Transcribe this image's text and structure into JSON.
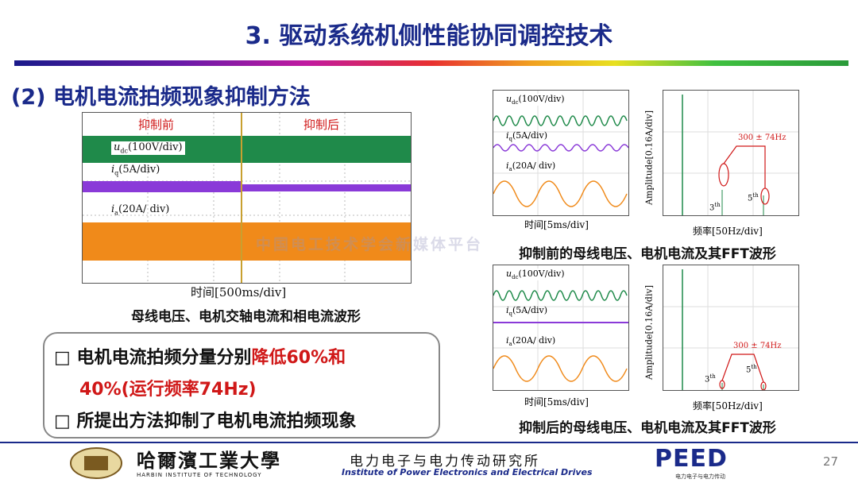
{
  "header": {
    "title": "3. 驱动系统机侧性能协同调控技术"
  },
  "section": {
    "subtitle": "(2) 电机电流拍频现象抑制方法"
  },
  "left_scope": {
    "label_before": "抑制前",
    "label_after": "抑制后",
    "udc_label": "u",
    "udc_sub": "dc",
    "udc_scale": "(100V/div)",
    "iq_label": "i",
    "iq_sub": "q",
    "iq_scale": "(5A/div)",
    "ia_label": "i",
    "ia_sub": "a",
    "ia_scale": "(20A/ div)",
    "time_axis": "时间[500ms/div]",
    "caption": "母线电压、电机交轴电流和相电流波形"
  },
  "right_top": {
    "udc_label": "u",
    "udc_sub": "dc",
    "udc_scale": "(100V/div)",
    "iq_label": "i",
    "iq_sub": "q",
    "iq_scale": "(5A/div)",
    "ia_label": "i",
    "ia_sub": "a",
    "ia_scale": "(20A/ div)",
    "time_axis": "时间[5ms/div]",
    "fft_ylabel": "Amplitude[0.16A/div]",
    "fft_xlabel": "频率[50Hz/div]",
    "fft_annot": "300 ± 74Hz",
    "h3": "3",
    "h5": "5",
    "th": "th",
    "caption": "抑制前的母线电压、电机电流及其FFT波形"
  },
  "right_bottom": {
    "udc_label": "u",
    "udc_sub": "dc",
    "udc_scale": "(100V/div)",
    "iq_label": "i",
    "iq_sub": "q",
    "iq_scale": "(5A/div)",
    "ia_label": "i",
    "ia_sub": "a",
    "ia_scale": "(20A/ div)",
    "time_axis": "时间[5ms/div]",
    "fft_ylabel": "Amplitude[0.16A/div]",
    "fft_xlabel": "频率[50Hz/div]",
    "fft_annot": "300 ± 74Hz",
    "h3": "3",
    "h5": "5",
    "th": "th",
    "caption": "抑制后的母线电压、电机电流及其FFT波形"
  },
  "bullets": {
    "b1_prefix": "电机电流拍频分量分别",
    "b1_red": "降低60%和",
    "b1_line2": "40%(运行频率74Hz)",
    "b2": "所提出方法抑制了电机电流拍频现象"
  },
  "watermark": "中国电工技术学会新媒体平台",
  "footer": {
    "hit_cn": "哈爾濱工業大學",
    "hit_en": "HARBIN INSTITUTE OF TECHNOLOGY",
    "inst_cn": "电力电子与电力传动研究所",
    "inst_en": "Institute of Power Electronics and Electrical Drives",
    "peed": "PEED",
    "peed_sub": "电力电子与电力传动",
    "page": "27"
  },
  "colors": {
    "title": "#1a2a8a",
    "udc": "#1f8a4a",
    "iq": "#8a3ad8",
    "ia": "#f08a1a",
    "annot": "#d01818"
  }
}
